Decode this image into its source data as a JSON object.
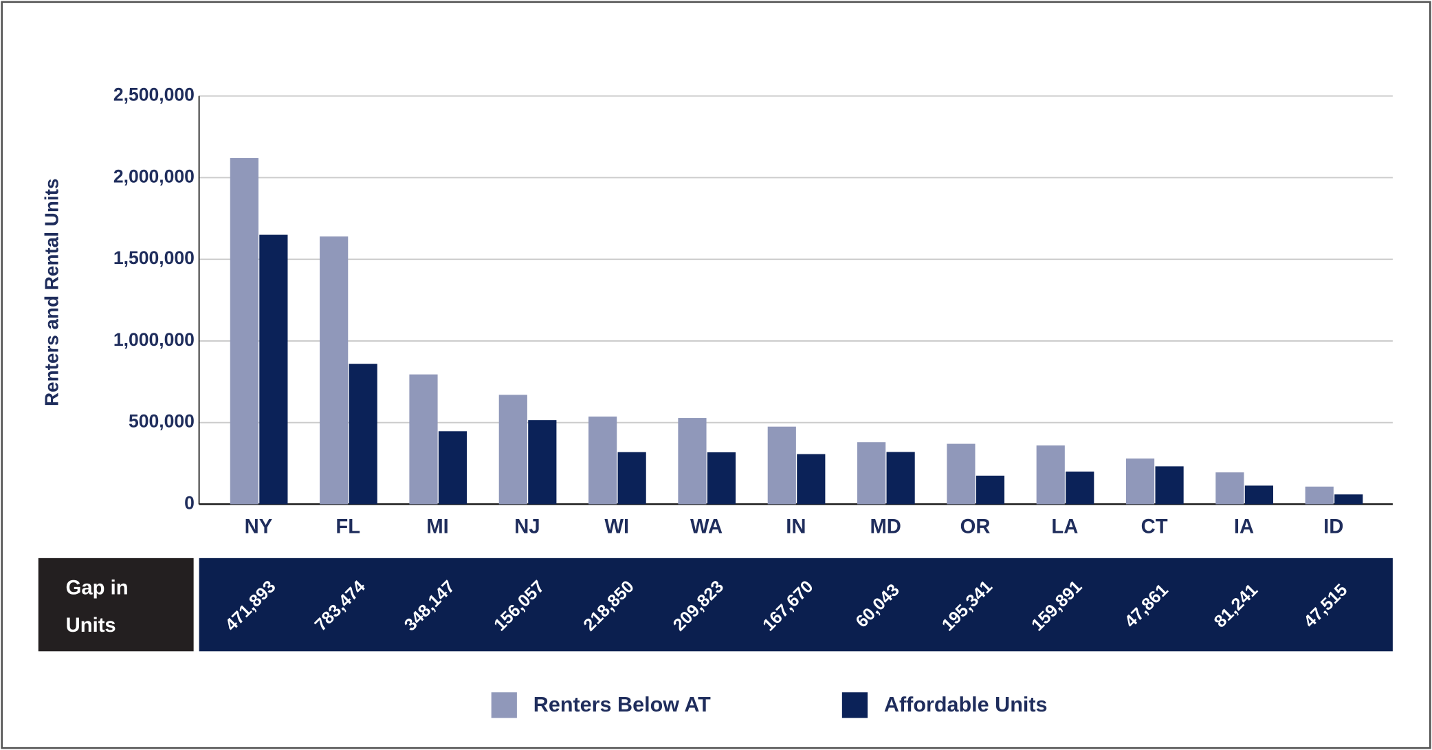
{
  "chart_data": {
    "type": "bar",
    "y_label": "Renters and Rental Units",
    "categories": [
      "NY",
      "FL",
      "MI",
      "NJ",
      "WI",
      "WA",
      "IN",
      "MD",
      "OR",
      "LA",
      "CT",
      "IA",
      "ID"
    ],
    "series": [
      {
        "name": "Renters Below AT",
        "color": "#9098ba",
        "values": [
          2120000,
          1640000,
          795000,
          670000,
          537000,
          528000,
          475000,
          380000,
          370000,
          360000,
          280000,
          195000,
          108000
        ]
      },
      {
        "name": "Affordable Units",
        "color": "#0b2258",
        "values": [
          1650000,
          860000,
          447000,
          515000,
          319000,
          318000,
          307000,
          320000,
          175000,
          200000,
          232000,
          114000,
          60000
        ]
      }
    ],
    "ylim": [
      0,
      2500000
    ],
    "yticks": [
      0,
      {
        "value": 500000,
        "label": "500,000"
      },
      {
        "value": 1000000,
        "label": "1,000,000"
      },
      {
        "value": 1500000,
        "label": "1,500,000"
      },
      {
        "value": 2000000,
        "label": "2,000,000"
      },
      {
        "value": 2500000,
        "label": "2,500,000"
      }
    ],
    "grid": true,
    "gap_title": [
      "Gap in",
      "Units"
    ],
    "gaps": [
      "471,893",
      "783,474",
      "348,147",
      "156,057",
      "218,850",
      "209,823",
      "167,670",
      "60,043",
      "195,341",
      "159,891",
      "47,861",
      "81,241",
      "47,515"
    ]
  }
}
